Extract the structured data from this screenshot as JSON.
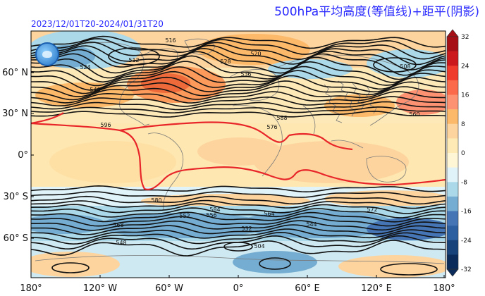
{
  "title": "500hPa平均高度(等值线)+距平(阴影)",
  "period": "2023/12/01T20-2024/01/31T20",
  "colorbar": {
    "ticks": [
      "32",
      "24",
      "16",
      "8",
      "0",
      "-8",
      "-16",
      "-24",
      "-32"
    ],
    "colors": [
      "#a50f15",
      "#cb181d",
      "#ef3b2c",
      "#fb6a4a",
      "#fc9272",
      "#fdb96a",
      "#fdd49e",
      "#feeab5",
      "#fff6d5",
      "#e0f3f8",
      "#abd9e9",
      "#74add1",
      "#4575b4",
      "#2c5fa0",
      "#17437a",
      "#0b2c5a"
    ]
  },
  "y_axis_labels": [
    "60° N",
    "30° N",
    "0°",
    "30° S",
    "60° S"
  ],
  "x_axis_labels": [
    "180°",
    "120° W",
    "60° W",
    "0°",
    "60° E",
    "120° E",
    "180°"
  ],
  "contour_labels": [
    "516",
    "520",
    "528",
    "512",
    "508",
    "576",
    "588",
    "584",
    "560",
    "540",
    "524",
    "548",
    "556",
    "564",
    "572",
    "532",
    "544",
    "504",
    "552",
    "580",
    "536",
    "568",
    "596"
  ],
  "colors": {
    "contour": "#111111",
    "contour_588": "#e8262a",
    "title": "#2a2aff",
    "coast": "#7a7a7a"
  }
}
